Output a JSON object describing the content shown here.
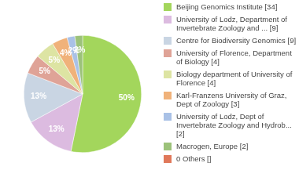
{
  "chart_data": {
    "type": "pie",
    "categories": [
      "Beijing Genomics Institute [34]",
      "University of Lodz, Department of Invertebrate Zoology and ... [9]",
      "Centre for Biodiversity Genomics [9]",
      "University of Florence, Department of Biology [4]",
      "Biology department of University of Florence [4]",
      "Karl-Franzens University of Graz, Dept of Zoology [3]",
      "University of Lodz, Dept of Invertebrate Zoology and Hydrob... [2]",
      "Macrogen, Europe [2]",
      "0 Others []"
    ],
    "values": [
      50,
      13,
      13,
      5,
      5,
      4,
      2,
      2,
      0
    ],
    "value_labels": [
      "50%",
      "13%",
      "13%",
      "5%",
      "5%",
      "4%",
      "2%",
      "2%",
      null
    ],
    "colors": [
      "#a3d65c",
      "#dcbbe0",
      "#c9d5e3",
      "#dfa397",
      "#dde4a3",
      "#f0b27a",
      "#a9c1e6",
      "#9cc27a",
      "#e0785a"
    ],
    "data_labels": true,
    "legend": "right"
  }
}
